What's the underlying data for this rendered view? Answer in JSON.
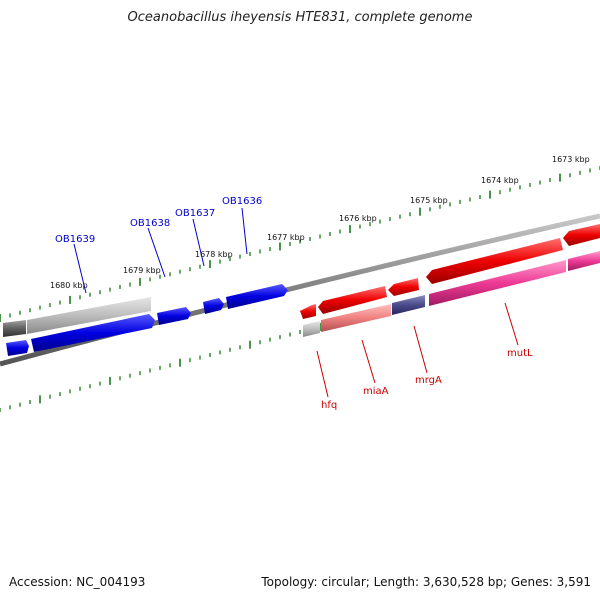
{
  "title": "Oceanobacillus iheyensis HTE831, complete genome",
  "footer": {
    "accession": "Accession: NC_004193",
    "stats": "Topology: circular; Length: 3,630,528 bp; Genes: 3,591"
  },
  "colors": {
    "backbone": "#808080",
    "tick": "#1a7a1a",
    "label_blue": "#0000cc",
    "label_red": "#cc0000",
    "gene_blue": "#0000dd",
    "gene_red": "#ee0000",
    "gene_pink": "#ee4499",
    "gene_salmon": "#f08080",
    "gene_purple": "#4a4a8a",
    "gene_gray": "#bdbdbd"
  },
  "scale_labels": [
    "1673 kbp",
    "1674 kbp",
    "1675 kbp",
    "1676 kbp",
    "1677 kbp",
    "1678 kbp",
    "1679 kbp",
    "1680 kbp"
  ],
  "gene_labels": {
    "upper": [
      "OB1636",
      "OB1637",
      "OB1638",
      "OB1639"
    ],
    "lower": [
      "mutL",
      "mrgA",
      "miaA",
      "hfq"
    ]
  }
}
